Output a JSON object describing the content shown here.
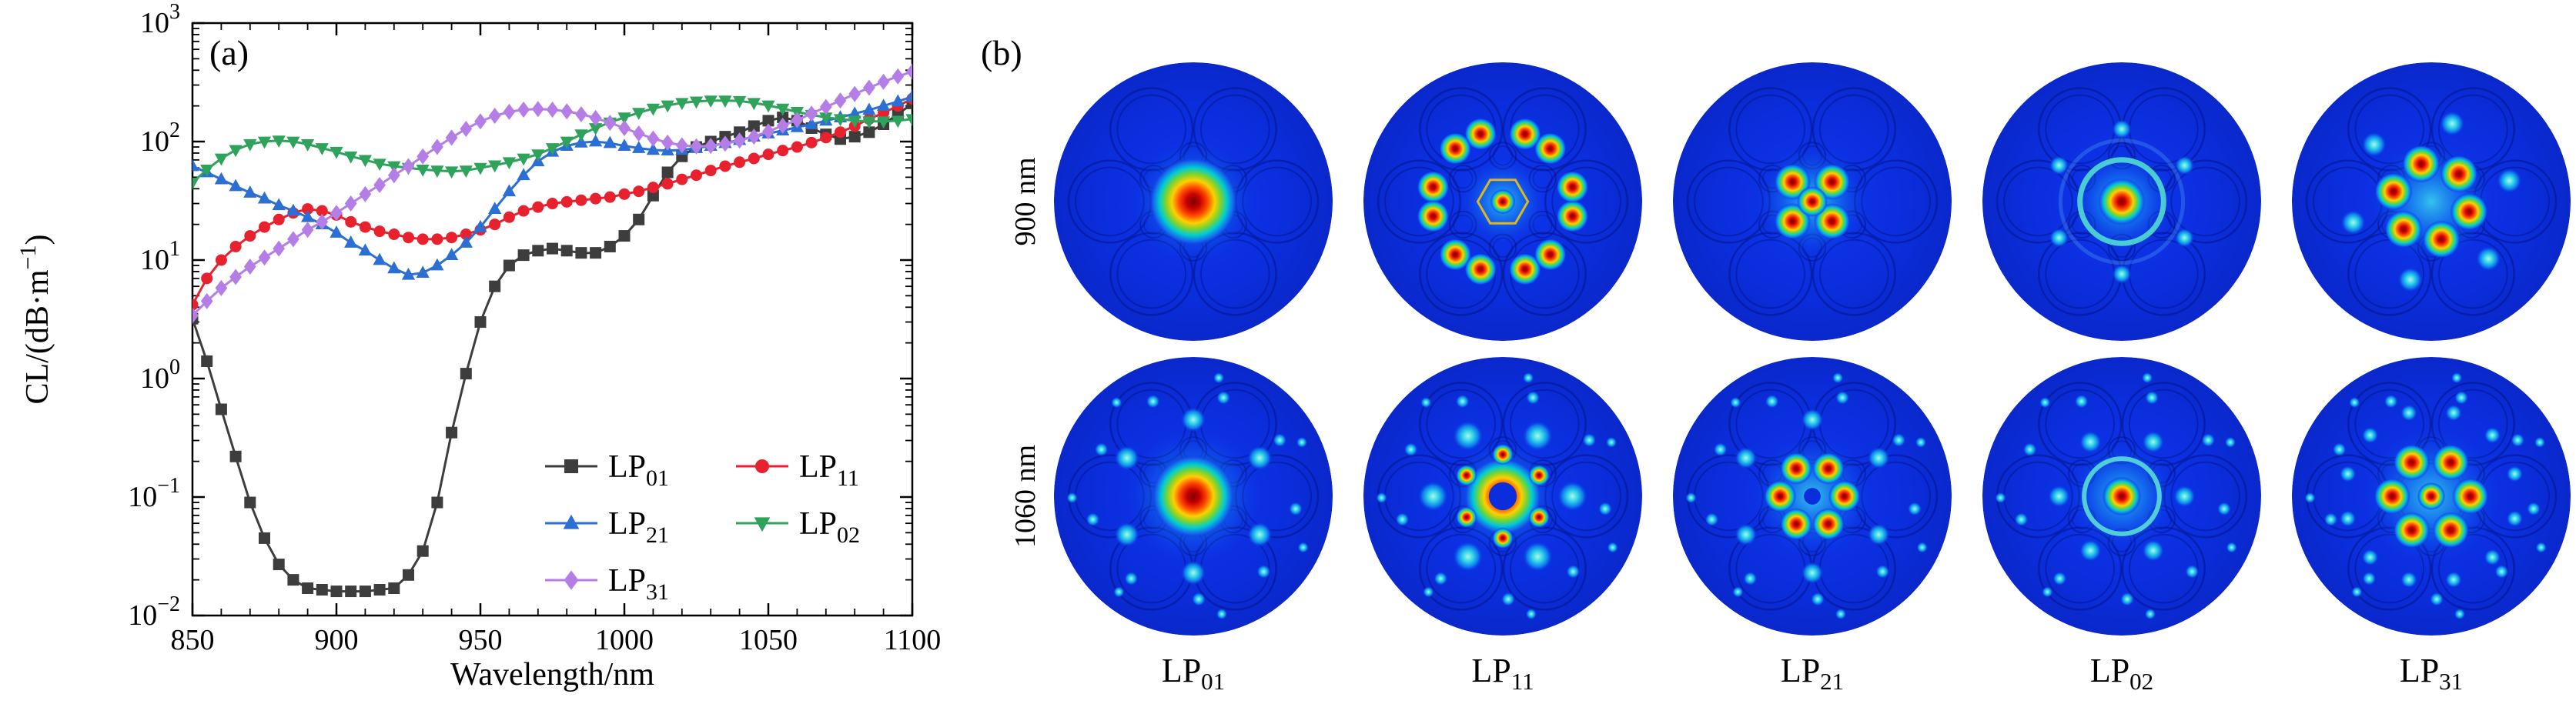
{
  "figure": {
    "panel_a": {
      "label": "(a)"
    },
    "panel_b": {
      "label": "(b)",
      "row_labels": [
        "900 nm",
        "1060 nm"
      ],
      "col_labels": [
        {
          "base": "LP",
          "sub": "01"
        },
        {
          "base": "LP",
          "sub": "11"
        },
        {
          "base": "LP",
          "sub": "21"
        },
        {
          "base": "LP",
          "sub": "02"
        },
        {
          "base": "LP",
          "sub": "31"
        }
      ]
    }
  },
  "chart_data": {
    "type": "line",
    "title": "",
    "xlabel": "Wavelength/nm",
    "ylabel": "CL/(dB·m⁻¹)",
    "ylabel_parts": {
      "pre": "CL/(dB·m",
      "sup": "−1",
      "post": ")"
    },
    "x_range": [
      850,
      1100
    ],
    "x_ticks": [
      850,
      900,
      950,
      1000,
      1050,
      1100
    ],
    "x_minor_step": 10,
    "y_scale": "log",
    "y_range": [
      0.01,
      1000
    ],
    "y_tick_exponents": [
      3,
      2,
      1,
      0,
      -1,
      -2
    ],
    "grid": false,
    "legend_position": "inside-bottom-right",
    "x": [
      850,
      855,
      860,
      865,
      870,
      875,
      880,
      885,
      890,
      895,
      900,
      905,
      910,
      915,
      920,
      925,
      930,
      935,
      940,
      945,
      950,
      955,
      960,
      965,
      970,
      975,
      980,
      985,
      990,
      995,
      1000,
      1005,
      1010,
      1015,
      1020,
      1025,
      1030,
      1035,
      1040,
      1045,
      1050,
      1055,
      1060,
      1065,
      1070,
      1075,
      1080,
      1085,
      1090,
      1095,
      1100
    ],
    "series": [
      {
        "name": "LP01",
        "label_base": "LP",
        "label_sub": "01",
        "marker": "square",
        "color": "#3d3d3d",
        "y": [
          3.2,
          1.4,
          0.55,
          0.22,
          0.09,
          0.045,
          0.027,
          0.02,
          0.017,
          0.0165,
          0.016,
          0.016,
          0.016,
          0.0165,
          0.017,
          0.022,
          0.035,
          0.09,
          0.35,
          1.1,
          3.0,
          6.0,
          9.0,
          11,
          12,
          12.5,
          12,
          11.5,
          11.5,
          13,
          16,
          22,
          35,
          55,
          75,
          90,
          100,
          110,
          120,
          135,
          150,
          160,
          150,
          130,
          115,
          105,
          110,
          120,
          140,
          170,
          210
        ]
      },
      {
        "name": "LP11",
        "label_base": "LP",
        "label_sub": "11",
        "marker": "circle",
        "color": "#e8212e",
        "y": [
          4.2,
          7,
          10,
          13,
          16,
          19,
          22,
          25,
          27,
          26,
          24,
          21,
          19,
          17.5,
          16.5,
          15.5,
          15,
          15,
          15.5,
          16.5,
          18,
          20,
          23,
          26,
          28,
          30,
          31,
          32,
          33,
          34,
          36,
          38,
          41,
          44,
          48,
          52,
          57,
          62,
          67,
          72,
          78,
          84,
          90,
          98,
          108,
          120,
          135,
          155,
          175,
          200,
          230
        ]
      },
      {
        "name": "LP21",
        "label_base": "LP",
        "label_sub": "21",
        "marker": "triangle-up",
        "color": "#2b6fd4",
        "y": [
          62,
          55,
          48,
          42,
          37,
          33,
          29,
          26,
          23,
          20,
          17,
          14,
          12,
          10,
          8.5,
          7.5,
          7.8,
          9,
          11,
          14,
          19,
          27,
          38,
          52,
          68,
          82,
          92,
          98,
          100,
          97,
          92,
          88,
          85,
          84,
          85,
          88,
          92,
          97,
          103,
          110,
          117,
          124,
          132,
          140,
          150,
          160,
          172,
          185,
          200,
          218,
          240
        ]
      },
      {
        "name": "LP02",
        "label_base": "LP",
        "label_sub": "02",
        "marker": "triangle-down",
        "color": "#2fa35c",
        "y": [
          45,
          58,
          72,
          85,
          95,
          100,
          102,
          100,
          95,
          88,
          82,
          75,
          70,
          65,
          62,
          60,
          58,
          57,
          56,
          57,
          60,
          63,
          67,
          72,
          78,
          88,
          100,
          115,
          130,
          145,
          160,
          175,
          190,
          202,
          212,
          218,
          222,
          222,
          220,
          212,
          202,
          190,
          178,
          168,
          160,
          155,
          150,
          148,
          148,
          150,
          155
        ]
      },
      {
        "name": "LP31",
        "label_base": "LP",
        "label_sub": "31",
        "marker": "diamond",
        "color": "#b57ee6",
        "y": [
          3.4,
          4.5,
          5.8,
          7.2,
          8.8,
          10.5,
          12.5,
          15,
          18,
          21,
          25,
          30,
          36,
          43,
          52,
          62,
          75,
          90,
          108,
          128,
          148,
          165,
          178,
          186,
          188,
          186,
          180,
          170,
          158,
          144,
          130,
          117,
          106,
          98,
          93,
          91,
          92,
          96,
          102,
          110,
          122,
          136,
          152,
          172,
          196,
          222,
          252,
          285,
          320,
          355,
          390
        ]
      }
    ]
  }
}
